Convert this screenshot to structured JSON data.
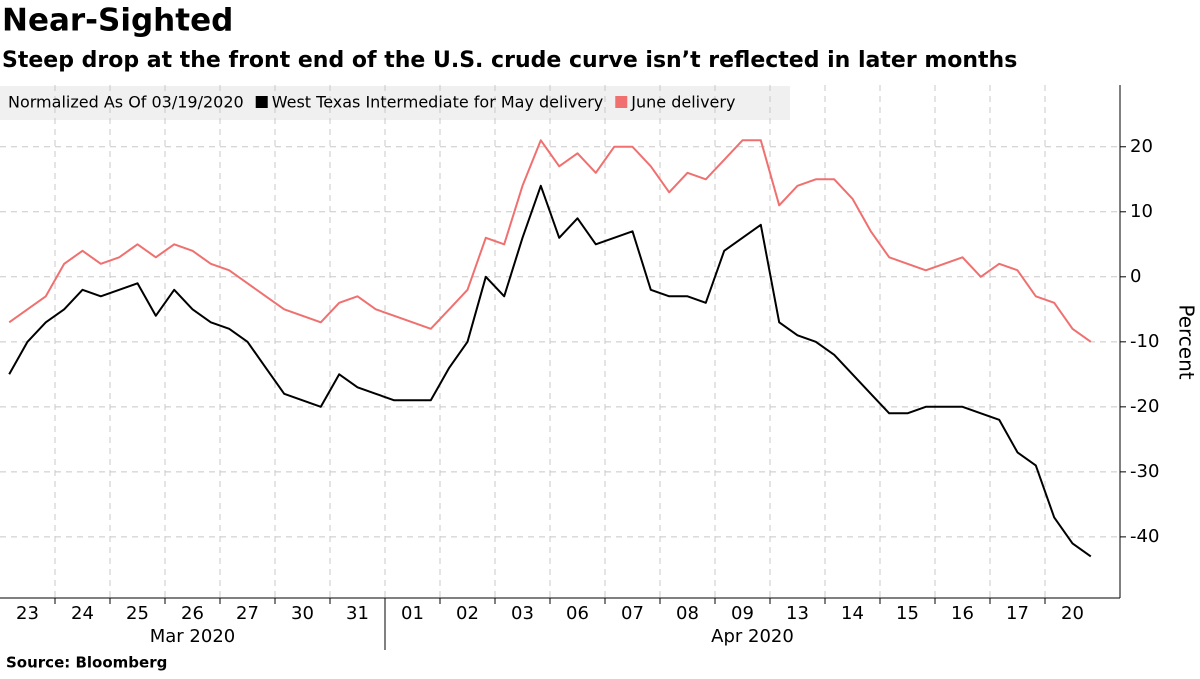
{
  "chart_data": {
    "type": "line",
    "title": "Near-Sighted",
    "subtitle": "Steep drop at the front end of the U.S. crude curve isn’t reflected in later months",
    "legend_title": "Normalized As Of 03/19/2020",
    "y_label": "Percent",
    "source": "Source: Bloomberg",
    "categories": [
      null,
      "23",
      null,
      null,
      "24",
      null,
      null,
      "25",
      null,
      null,
      "26",
      null,
      null,
      "27",
      null,
      null,
      "30",
      null,
      null,
      "31",
      null,
      null,
      "01",
      null,
      null,
      "02",
      null,
      null,
      "03",
      null,
      null,
      "06",
      null,
      null,
      "07",
      null,
      null,
      "08",
      null,
      null,
      "09",
      null,
      null,
      "13",
      null,
      null,
      "14",
      null,
      null,
      "15",
      null,
      null,
      "16",
      null,
      null,
      "17",
      null,
      null,
      "20",
      null
    ],
    "x_group_labels": [
      "Mar 2020",
      "Apr 2020"
    ],
    "series": [
      {
        "name": "West Texas Intermediate for May delivery",
        "color": "#000000",
        "values": [
          -15,
          -10,
          -7,
          -5,
          -2,
          -3,
          -2,
          -1,
          -6,
          -2,
          -5,
          -7,
          -8,
          -10,
          -14,
          -18,
          -19,
          -20,
          -15,
          -17,
          -18,
          -19,
          -19,
          -19,
          -14,
          -10,
          0,
          -3,
          6,
          14,
          6,
          9,
          5,
          6,
          7,
          -2,
          -3,
          -3,
          -4,
          4,
          6,
          8,
          -7,
          -9,
          -10,
          -12,
          -15,
          -18,
          -21,
          -21,
          -20,
          -20,
          -20,
          -21,
          -22,
          -27,
          -29,
          -37,
          -41,
          -43
        ]
      },
      {
        "name": "June delivery",
        "color": "#f07070",
        "values": [
          -7,
          -5,
          -3,
          2,
          4,
          2,
          3,
          5,
          3,
          5,
          4,
          2,
          1,
          -1,
          -3,
          -5,
          -6,
          -7,
          -4,
          -3,
          -5,
          -6,
          -7,
          -8,
          -5,
          -2,
          6,
          5,
          14,
          21,
          17,
          19,
          16,
          20,
          20,
          17,
          13,
          16,
          15,
          18,
          21,
          21,
          11,
          14,
          15,
          15,
          12,
          7,
          3,
          2,
          1,
          2,
          3,
          0,
          2,
          1,
          -3,
          -4,
          -8,
          -10
        ]
      }
    ],
    "ylim": [
      -49.4,
      29.5
    ],
    "yticks": [
      -40,
      -30,
      -20,
      -10,
      0,
      10,
      20
    ],
    "grid": true
  }
}
